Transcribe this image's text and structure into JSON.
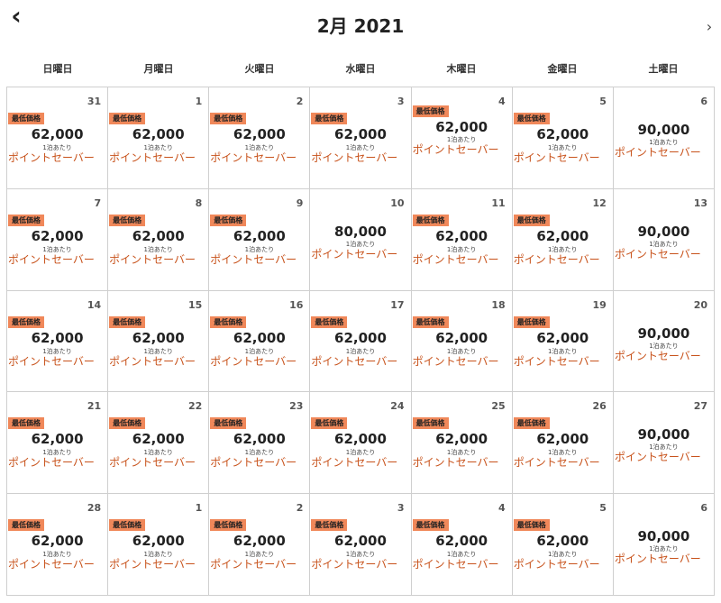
{
  "header": {
    "prev_icon": "chevron-left-icon",
    "prev_glyph": "‹",
    "next_icon": "chevron-right-icon",
    "next_glyph": "›",
    "title": "2月 2021"
  },
  "weekdays": [
    "日曜日",
    "月曜日",
    "火曜日",
    "水曜日",
    "木曜日",
    "金曜日",
    "土曜日"
  ],
  "colors": {
    "badge": "#f0885a",
    "saver": "#c8531c"
  },
  "cells": [
    {
      "day": "31",
      "badge": "最低価格",
      "price": "62,000",
      "per": "1泊あたり",
      "saver": "ポイントセーバー"
    },
    {
      "day": "1",
      "badge": "最低価格",
      "price": "62,000",
      "per": "1泊あたり",
      "saver": "ポイントセーバー"
    },
    {
      "day": "2",
      "badge": "最低価格",
      "price": "62,000",
      "per": "1泊あたり",
      "saver": "ポイントセーバー"
    },
    {
      "day": "3",
      "badge": "最低価格",
      "price": "62,000",
      "per": "1泊あたり",
      "saver": "ポイントセーバー"
    },
    {
      "day": "4",
      "badge": "最低価格",
      "price": "62,000",
      "per": "1泊あたり",
      "saver": "ポイントセーバー",
      "badge_high": true
    },
    {
      "day": "5",
      "badge": "最低価格",
      "price": "62,000",
      "per": "1泊あたり",
      "saver": "ポイントセーバー"
    },
    {
      "day": "6",
      "badge": "",
      "price": "90,000",
      "per": "1泊あたり",
      "saver": "ポイントセーバー"
    },
    {
      "day": "7",
      "badge": "最低価格",
      "price": "62,000",
      "per": "1泊あたり",
      "saver": "ポイントセーバー"
    },
    {
      "day": "8",
      "badge": "最低価格",
      "price": "62,000",
      "per": "1泊あたり",
      "saver": "ポイントセーバー"
    },
    {
      "day": "9",
      "badge": "最低価格",
      "price": "62,000",
      "per": "1泊あたり",
      "saver": "ポイントセーバー"
    },
    {
      "day": "10",
      "badge": "",
      "price": "80,000",
      "per": "1泊あたり",
      "saver": "ポイントセーバー"
    },
    {
      "day": "11",
      "badge": "最低価格",
      "price": "62,000",
      "per": "1泊あたり",
      "saver": "ポイントセーバー"
    },
    {
      "day": "12",
      "badge": "最低価格",
      "price": "62,000",
      "per": "1泊あたり",
      "saver": "ポイントセーバー"
    },
    {
      "day": "13",
      "badge": "",
      "price": "90,000",
      "per": "1泊あたり",
      "saver": "ポイントセーバー"
    },
    {
      "day": "14",
      "badge": "最低価格",
      "price": "62,000",
      "per": "1泊あたり",
      "saver": "ポイントセーバー"
    },
    {
      "day": "15",
      "badge": "最低価格",
      "price": "62,000",
      "per": "1泊あたり",
      "saver": "ポイントセーバー"
    },
    {
      "day": "16",
      "badge": "最低価格",
      "price": "62,000",
      "per": "1泊あたり",
      "saver": "ポイントセーバー"
    },
    {
      "day": "17",
      "badge": "最低価格",
      "price": "62,000",
      "per": "1泊あたり",
      "saver": "ポイントセーバー"
    },
    {
      "day": "18",
      "badge": "最低価格",
      "price": "62,000",
      "per": "1泊あたり",
      "saver": "ポイントセーバー"
    },
    {
      "day": "19",
      "badge": "最低価格",
      "price": "62,000",
      "per": "1泊あたり",
      "saver": "ポイントセーバー"
    },
    {
      "day": "20",
      "badge": "",
      "price": "90,000",
      "per": "1泊あたり",
      "saver": "ポイントセーバー"
    },
    {
      "day": "21",
      "badge": "最低価格",
      "price": "62,000",
      "per": "1泊あたり",
      "saver": "ポイントセーバー"
    },
    {
      "day": "22",
      "badge": "最低価格",
      "price": "62,000",
      "per": "1泊あたり",
      "saver": "ポイントセーバー"
    },
    {
      "day": "23",
      "badge": "最低価格",
      "price": "62,000",
      "per": "1泊あたり",
      "saver": "ポイントセーバー"
    },
    {
      "day": "24",
      "badge": "最低価格",
      "price": "62,000",
      "per": "1泊あたり",
      "saver": "ポイントセーバー"
    },
    {
      "day": "25",
      "badge": "最低価格",
      "price": "62,000",
      "per": "1泊あたり",
      "saver": "ポイントセーバー"
    },
    {
      "day": "26",
      "badge": "最低価格",
      "price": "62,000",
      "per": "1泊あたり",
      "saver": "ポイントセーバー"
    },
    {
      "day": "27",
      "badge": "",
      "price": "90,000",
      "per": "1泊あたり",
      "saver": "ポイントセーバー"
    },
    {
      "day": "28",
      "badge": "最低価格",
      "price": "62,000",
      "per": "1泊あたり",
      "saver": "ポイントセーバー"
    },
    {
      "day": "1",
      "badge": "最低価格",
      "price": "62,000",
      "per": "1泊あたり",
      "saver": "ポイントセーバー"
    },
    {
      "day": "2",
      "badge": "最低価格",
      "price": "62,000",
      "per": "1泊あたり",
      "saver": "ポイントセーバー"
    },
    {
      "day": "3",
      "badge": "最低価格",
      "price": "62,000",
      "per": "1泊あたり",
      "saver": "ポイントセーバー"
    },
    {
      "day": "4",
      "badge": "最低価格",
      "price": "62,000",
      "per": "1泊あたり",
      "saver": "ポイントセーバー"
    },
    {
      "day": "5",
      "badge": "最低価格",
      "price": "62,000",
      "per": "1泊あたり",
      "saver": "ポイントセーバー"
    },
    {
      "day": "6",
      "badge": "",
      "price": "90,000",
      "per": "1泊あたり",
      "saver": "ポイントセーバー"
    }
  ]
}
